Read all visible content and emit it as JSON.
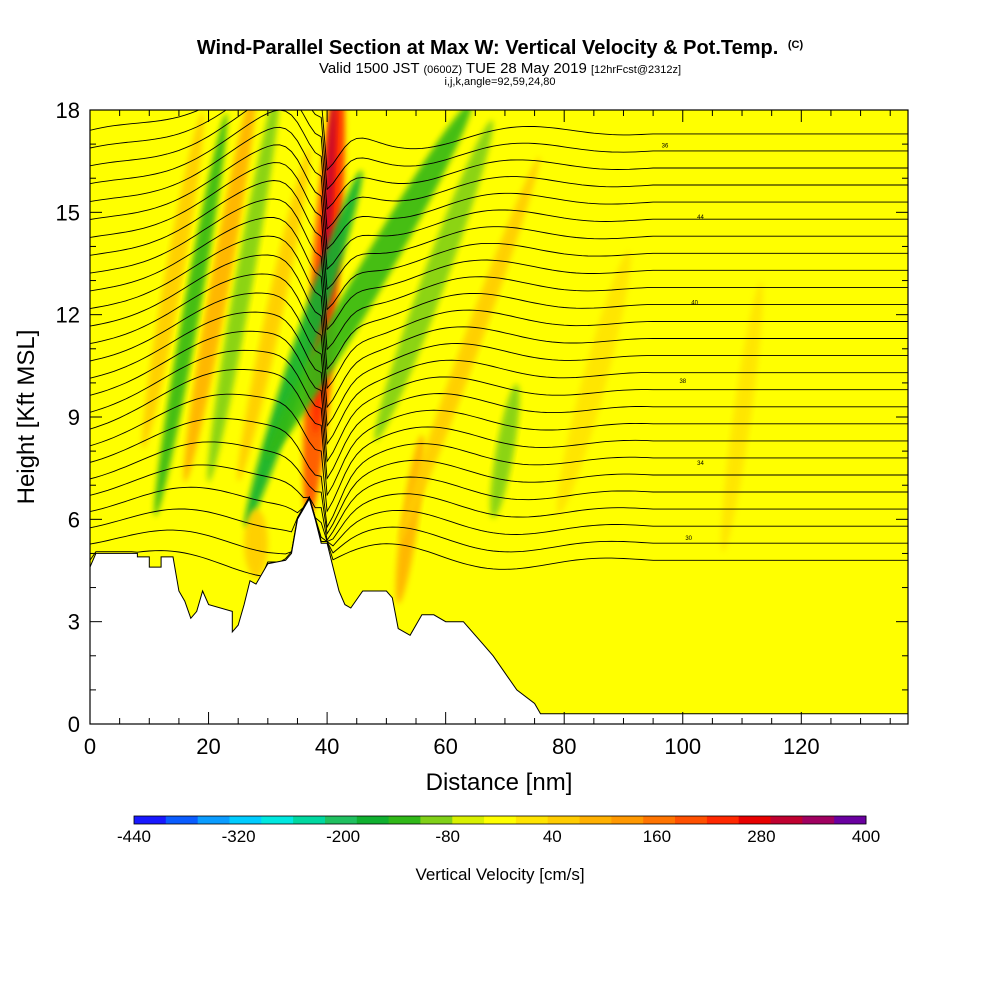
{
  "header": {
    "title": "Wind-Parallel Section at Max W: Vertical Velocity & Pot.Temp.",
    "title_tag": "(C)",
    "valid_prefix": "Valid 1500 JST",
    "valid_utc": "(0600Z)",
    "valid_date": "TUE 28 May 2019",
    "forecast": "[12hrFcst@2312z]",
    "indices": "i,j,k,angle=92,59,24,80"
  },
  "chart_data": {
    "type": "heatmap",
    "xlabel": "Distance [nm]",
    "ylabel": "Height [Kft MSL]",
    "xlim": [
      0,
      138
    ],
    "ylim": [
      0,
      18
    ],
    "xticks": [
      0,
      20,
      40,
      60,
      80,
      100,
      120
    ],
    "yticks": [
      0,
      3,
      6,
      9,
      12,
      15,
      18
    ],
    "colorbar": {
      "label": "Vertical Velocity [cm/s]",
      "tick_labels": [
        -440,
        -320,
        -200,
        -80,
        40,
        160,
        280,
        400
      ],
      "min": -440,
      "max": 400,
      "step": 40,
      "colors": [
        "#1818ff",
        "#0a5cff",
        "#0a9cff",
        "#00ccff",
        "#00e8e0",
        "#00d8a0",
        "#20c060",
        "#10b030",
        "#30b818",
        "#80d018",
        "#d8f000",
        "#ffff00",
        "#ffe400",
        "#ffcc00",
        "#ffb000",
        "#ff9800",
        "#ff7400",
        "#ff5000",
        "#ff2800",
        "#e80000",
        "#c00030",
        "#a00060",
        "#6a00a0"
      ]
    },
    "updraft_core": {
      "x_range": [
        38,
        42
      ],
      "y_range": [
        6.5,
        18
      ],
      "max_value": 400
    },
    "theta_contours": [
      {
        "label": "34",
        "x": 103,
        "y": 7.6
      },
      {
        "label": "36",
        "x": 97,
        "y": 16.9
      },
      {
        "label": "38",
        "x": 100,
        "y": 10
      },
      {
        "label": "40",
        "x": 102,
        "y": 12.3
      },
      {
        "label": "44",
        "x": 103,
        "y": 14.8
      },
      {
        "label": "30",
        "x": 101,
        "y": 5.4
      }
    ]
  }
}
